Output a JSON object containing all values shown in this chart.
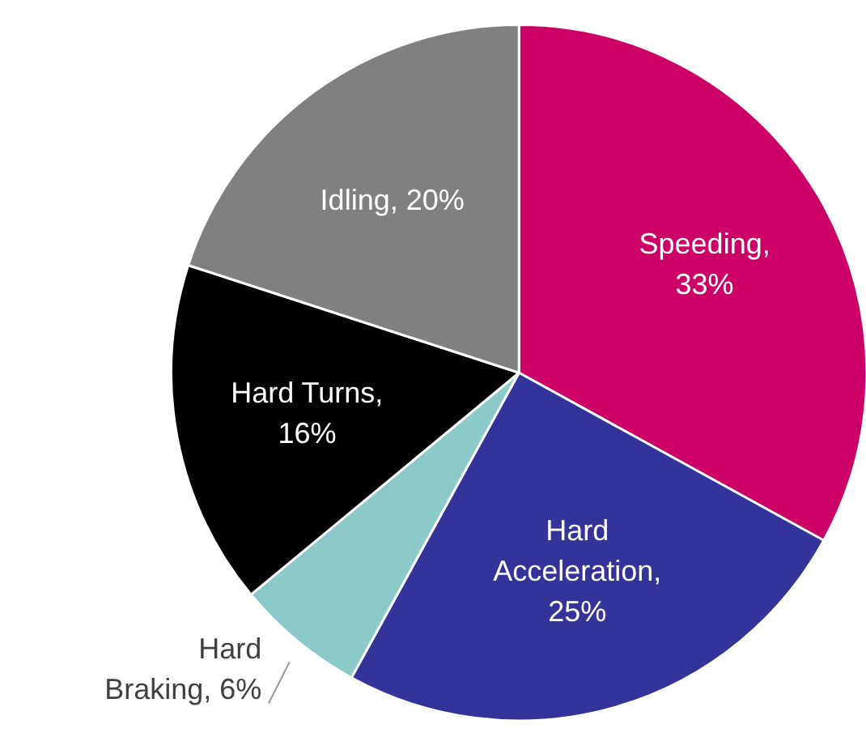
{
  "chart_data": {
    "type": "pie",
    "categories": [
      "Speeding,\n33%",
      "Hard\nAcceleration,\n25%",
      "Hard\nBraking, 6%",
      "Hard Turns,\n16%",
      "Idling, 20%"
    ],
    "values": [
      33,
      25,
      6,
      16,
      20
    ],
    "colors": [
      "#cc0066",
      "#333399",
      "#8ccaca",
      "#000000",
      "#808080"
    ]
  }
}
